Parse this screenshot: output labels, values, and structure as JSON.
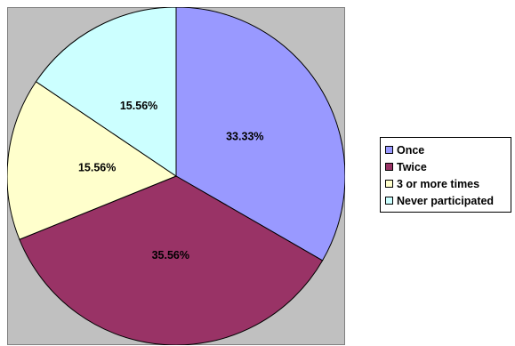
{
  "chart_data": {
    "type": "pie",
    "title": "",
    "categories": [
      "Once",
      "Twice",
      "3 or more times",
      "Never participated"
    ],
    "values": [
      33.33,
      35.56,
      15.56,
      15.56
    ],
    "data_labels": [
      "33.33%",
      "35.56%",
      "15.56%",
      "15.56%"
    ],
    "colors": [
      "#9999FF",
      "#993366",
      "#FFFFCC",
      "#CCFFFF"
    ],
    "plot_background": "#C0C0C0",
    "start_angle": "top",
    "direction": "clockwise",
    "legend_position": "right"
  }
}
